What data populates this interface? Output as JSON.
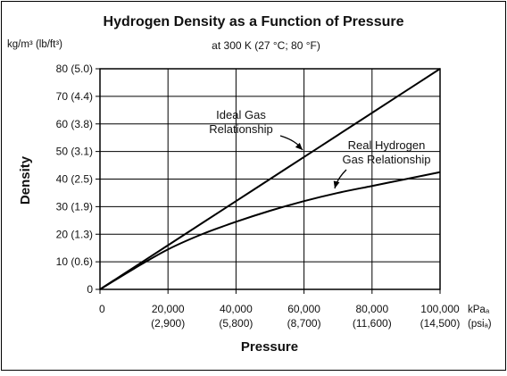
{
  "chart_data": {
    "type": "line",
    "title": "Hydrogen Density as a Function of Pressure",
    "subtitle": "at 300 K (27 °C; 80 °F)",
    "ylabel": "Density",
    "xlabel": "Pressure",
    "y_unit_label": "kg/m³ (lb/ft³)",
    "x_unit_label_line1": "kPaₐ",
    "x_unit_label_line2": "(psiₐ)",
    "xlim": [
      0,
      100000
    ],
    "ylim": [
      0,
      80
    ],
    "grid": true,
    "x_ticks": [
      {
        "value": 0,
        "label": "0",
        "sublabel": ""
      },
      {
        "value": 20000,
        "label": "20,000",
        "sublabel": "(2,900)"
      },
      {
        "value": 40000,
        "label": "40,000",
        "sublabel": "(5,800)"
      },
      {
        "value": 60000,
        "label": "60,000",
        "sublabel": "(8,700)"
      },
      {
        "value": 80000,
        "label": "80,000",
        "sublabel": "(11,600)"
      },
      {
        "value": 100000,
        "label": "100,000",
        "sublabel": "(14,500)"
      }
    ],
    "y_ticks": [
      {
        "value": 0,
        "label": "0"
      },
      {
        "value": 10,
        "label": "10 (0.6)"
      },
      {
        "value": 20,
        "label": "20 (1.3)"
      },
      {
        "value": 30,
        "label": "30 (1.9)"
      },
      {
        "value": 40,
        "label": "40 (2.5)"
      },
      {
        "value": 50,
        "label": "50 (3.1)"
      },
      {
        "value": 60,
        "label": "60 (3.8)"
      },
      {
        "value": 70,
        "label": "70 (4.4)"
      },
      {
        "value": 80,
        "label": "80 (5.0)"
      }
    ],
    "series": [
      {
        "x": [
          0,
          10000,
          20000,
          30000,
          40000,
          50000,
          60000,
          70000,
          80000,
          90000,
          100000
        ],
        "y": [
          0,
          8,
          16,
          24,
          32,
          40,
          48,
          56,
          64,
          72,
          80
        ]
      },
      {
        "x": [
          0,
          10000,
          20000,
          30000,
          40000,
          50000,
          60000,
          70000,
          80000,
          90000,
          100000
        ],
        "y": [
          0,
          7.5,
          14.5,
          20,
          24.5,
          28.5,
          32,
          35,
          37.5,
          40,
          42.5
        ]
      }
    ],
    "annotations": [
      {
        "lines": [
          "Ideal Gas",
          "Relationship"
        ]
      },
      {
        "lines": [
          "Real Hydrogen",
          "Gas Relationship"
        ]
      }
    ]
  }
}
